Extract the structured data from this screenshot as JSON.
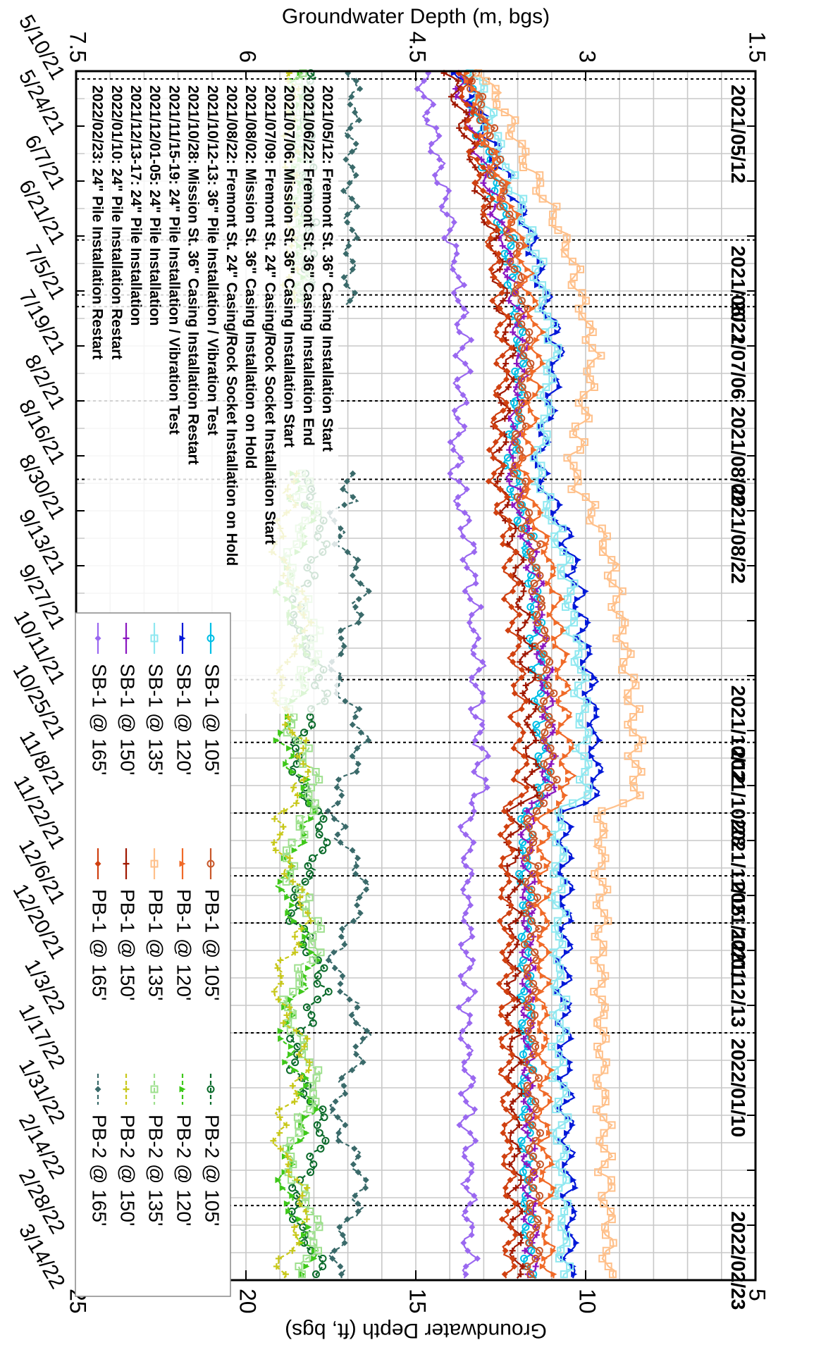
{
  "chart_data": {
    "type": "line",
    "orientation": "rotated-90-clockwise",
    "x_axis": {
      "kind": "date",
      "range": [
        "2021-05-10",
        "2022-03-14"
      ],
      "tick_dates": [
        "2021-05-10",
        "2021-05-24",
        "2021-06-07",
        "2021-06-21",
        "2021-07-05",
        "2021-07-19",
        "2021-08-02",
        "2021-08-16",
        "2021-08-30",
        "2021-09-13",
        "2021-09-27",
        "2021-10-11",
        "2021-10-25",
        "2021-11-08",
        "2021-11-22",
        "2021-12-06",
        "2021-12-20",
        "2022-01-03",
        "2022-01-17",
        "2022-01-31",
        "2022-02-14",
        "2022-02-28",
        "2022-03-14"
      ],
      "tick_labels": [
        "5/10/21",
        "5/24/21",
        "6/7/21",
        "6/21/21",
        "7/5/21",
        "7/19/21",
        "8/2/21",
        "8/16/21",
        "8/30/21",
        "9/13/21",
        "9/27/21",
        "10/11/21",
        "10/25/21",
        "11/8/21",
        "11/22/21",
        "12/6/21",
        "12/20/21",
        "1/3/22",
        "1/17/22",
        "1/31/22",
        "2/14/22",
        "2/28/22",
        "3/14/22"
      ]
    },
    "y_left": {
      "label": "Groundwater Depth (m, bgs)",
      "range": [
        1.5,
        7.5
      ],
      "ticks": [
        1.5,
        3,
        4.5,
        6,
        7.5
      ],
      "tick_labels": [
        "1.5",
        "3",
        "4.5",
        "6",
        "7.5"
      ],
      "inverted": true
    },
    "y_right": {
      "label": "Groundwater Depth (ft, bgs)",
      "range": [
        5,
        25
      ],
      "ticks": [
        5,
        10,
        15,
        20,
        25
      ],
      "tick_labels": [
        "5",
        "10",
        "15",
        "20",
        "25"
      ]
    },
    "grid": true,
    "event_lines": [
      {
        "date": "2021-05-12",
        "label": "2021/05/12"
      },
      {
        "date": "2021-06-22",
        "label": "2021/06/22"
      },
      {
        "date": "2021-07-06",
        "label": "2021/07/06"
      },
      {
        "date": "2021-07-09",
        "label": ""
      },
      {
        "date": "2021-08-02",
        "label": "2021/08/02"
      },
      {
        "date": "2021-08-22",
        "label": "2021/08/22"
      },
      {
        "date": "2021-10-12",
        "label": "2021/10/12"
      },
      {
        "date": "2021-10-28",
        "label": "2021/10/28"
      },
      {
        "date": "2021-11-15",
        "label": "2021/11/15"
      },
      {
        "date": "2021-12-01",
        "label": "2021/12/01"
      },
      {
        "date": "2021-12-13",
        "label": "2021/12/13"
      },
      {
        "date": "2022-01-10",
        "label": "2022/01/10"
      },
      {
        "date": "2022-02-23",
        "label": "2022/02/23"
      }
    ],
    "annotations": [
      "2021/05/12: Fremont St. 36\" Casing Installation Start",
      "2021/06/22: Fremont St. 36\" Casing Installation End",
      "2021/07/06: Mission St. 36\" Casing Installation Start",
      "2021/07/09: Fremont St. 24\" Casing/Rock Socket Installation Start",
      "2021/08/02: Mission St.  36\" Casing Installation on Hold",
      "2021/08/22: Fremont St. 24\" Casing/Rock Socket Installation on Hold",
      "2021/10/12-13: 36\" Pile Installation / Vibration Test",
      "2021/10/28: Mission St. 36\" Casing Installation Restart",
      "2021/11/15-19: 24\" Pile Installation / Vibration Test",
      "2021/12/01-05: 24\" Pile Installation",
      "2021/12/13-17: 24\" Pile Installation",
      "2022/01/10: 24\" Pile Installation Restart",
      "2022/02/23: 24\" Pile Installation Restart"
    ],
    "legend_position": "upper-right (rotated)",
    "series": [
      {
        "name": "SB-1 @ 105'",
        "color": "#00bfe6",
        "marker": "circle",
        "start_level": 4.05,
        "mid_level": 3.4
      },
      {
        "name": "SB-1 @ 120'",
        "color": "#0018d8",
        "marker": "triangle",
        "start_level": 4.1,
        "mid_level": 2.95
      },
      {
        "name": "SB-1 @ 135'",
        "color": "#8fe8f0",
        "marker": "square",
        "start_level": 4.0,
        "mid_level": 3.05
      },
      {
        "name": "SB-1 @ 150'",
        "color": "#8a16c0",
        "marker": "plus",
        "start_level": 4.15,
        "mid_level": 3.35
      },
      {
        "name": "SB-1 @ 165'",
        "color": "#9a68f0",
        "marker": "diamond",
        "start_level": 4.45,
        "mid_level": 3.95
      },
      {
        "name": "PB-1 @ 105'",
        "color": "#c8582a",
        "marker": "circle",
        "start_level": 4.0,
        "mid_level": 3.35
      },
      {
        "name": "PB-1 @ 120'",
        "color": "#f06a28",
        "marker": "triangle",
        "start_level": 4.05,
        "mid_level": 3.2
      },
      {
        "name": "PB-1 @ 135'",
        "color": "#ffc08a",
        "marker": "square",
        "start_level": 3.9,
        "mid_level": 2.6
      },
      {
        "name": "PB-1 @ 150'",
        "color": "#a01800",
        "marker": "plus",
        "start_level": 4.2,
        "mid_level": 3.5
      },
      {
        "name": "PB-1 @ 165'",
        "color": "#d04010",
        "marker": "diamond",
        "start_level": 4.1,
        "mid_level": 3.6
      },
      {
        "name": "PB-2 @ 105'",
        "color": "#0a6a2a",
        "marker": "circle",
        "start_level": 5.45,
        "mid_level": 5.45
      },
      {
        "name": "PB-2 @ 120'",
        "color": "#3ec81a",
        "marker": "triangle",
        "start_level": 5.55,
        "mid_level": 5.55
      },
      {
        "name": "PB-2 @ 135'",
        "color": "#9ee08e",
        "marker": "square",
        "start_level": 5.5,
        "mid_level": 5.5
      },
      {
        "name": "PB-2 @ 150'",
        "color": "#c8c81a",
        "marker": "plus",
        "start_level": 5.6,
        "mid_level": 5.6
      },
      {
        "name": "PB-2 @ 165'",
        "color": "#3a6a6a",
        "marker": "diamond",
        "start_level": 5.05,
        "mid_level": 5.1
      }
    ]
  }
}
